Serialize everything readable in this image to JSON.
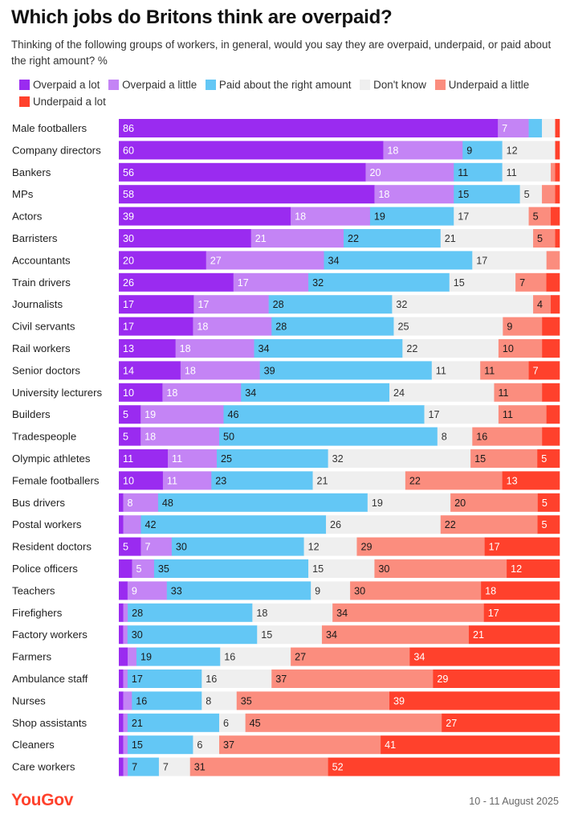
{
  "header": {
    "title": "Which jobs do Britons think are overpaid?",
    "subtitle": "Thinking of the following groups of workers, in general, would you say they are overpaid, underpaid, or paid about the right amount? %"
  },
  "footer": {
    "brand": "YouGov",
    "date": "10 - 11 August 2025"
  },
  "chart_data": {
    "type": "bar",
    "orientation": "horizontal",
    "stacked": true,
    "legend_position": "top",
    "grid": false,
    "categories": [
      "Male footballers",
      "Company directors",
      "Bankers",
      "MPs",
      "Actors",
      "Barristers",
      "Accountants",
      "Train drivers",
      "Journalists",
      "Civil servants",
      "Rail workers",
      "Senior doctors",
      "University lecturers",
      "Builders",
      "Tradespeople",
      "Olympic athletes",
      "Female footballers",
      "Bus drivers",
      "Postal workers",
      "Resident doctors",
      "Police officers",
      "Teachers",
      "Firefighers",
      "Factory workers",
      "Farmers",
      "Ambulance staff",
      "Nurses",
      "Shop assistants",
      "Cleaners",
      "Care workers"
    ],
    "series": [
      {
        "name": "Overpaid a lot",
        "color": "#9a2bf0",
        "label_color": "#ffffff",
        "values": [
          86,
          60,
          56,
          58,
          39,
          30,
          20,
          26,
          17,
          17,
          13,
          14,
          10,
          5,
          5,
          11,
          10,
          1,
          1,
          5,
          3,
          2,
          1,
          1,
          2,
          1,
          1,
          1,
          1,
          1
        ]
      },
      {
        "name": "Overpaid a little",
        "color": "#c484f5",
        "label_color": "#ffffff",
        "values": [
          7,
          18,
          20,
          18,
          18,
          21,
          27,
          17,
          17,
          18,
          18,
          18,
          18,
          19,
          18,
          11,
          11,
          8,
          4,
          7,
          5,
          9,
          1,
          1,
          2,
          1,
          2,
          1,
          1,
          1
        ]
      },
      {
        "name": "Paid about the right amount",
        "color": "#63c7f5",
        "label_color": "#1a1a1a",
        "values": [
          3,
          9,
          11,
          15,
          19,
          22,
          34,
          32,
          28,
          28,
          34,
          39,
          34,
          46,
          50,
          25,
          23,
          48,
          42,
          30,
          35,
          33,
          28,
          30,
          19,
          17,
          16,
          21,
          15,
          7
        ]
      },
      {
        "name": "Don't know",
        "color": "#efefef",
        "label_color": "#333333",
        "values": [
          3,
          12,
          11,
          5,
          17,
          21,
          17,
          15,
          32,
          25,
          22,
          11,
          24,
          17,
          8,
          32,
          21,
          19,
          26,
          12,
          15,
          9,
          18,
          15,
          16,
          16,
          8,
          6,
          6,
          7
        ]
      },
      {
        "name": "Underpaid a little",
        "color": "#fb8d7e",
        "label_color": "#1a1a1a",
        "values": [
          0,
          0,
          1,
          3,
          5,
          5,
          3,
          7,
          4,
          9,
          10,
          11,
          11,
          11,
          16,
          15,
          22,
          20,
          22,
          29,
          30,
          30,
          34,
          34,
          27,
          37,
          35,
          45,
          37,
          31
        ]
      },
      {
        "name": "Underpaid a lot",
        "color": "#ff412c",
        "label_color": "#ffffff",
        "values": [
          1,
          1,
          1,
          1,
          2,
          1,
          0,
          3,
          2,
          4,
          4,
          7,
          4,
          3,
          4,
          5,
          13,
          5,
          5,
          17,
          12,
          18,
          17,
          21,
          34,
          29,
          39,
          27,
          41,
          52
        ]
      }
    ],
    "data_labels": [
      [
        "86",
        "7",
        "",
        "",
        "",
        ""
      ],
      [
        "60",
        "18",
        "9",
        "12",
        "",
        ""
      ],
      [
        "56",
        "20",
        "11",
        "11",
        "",
        ""
      ],
      [
        "58",
        "18",
        "15",
        "5",
        "",
        ""
      ],
      [
        "39",
        "18",
        "19",
        "17",
        "5",
        ""
      ],
      [
        "30",
        "21",
        "22",
        "21",
        "5",
        ""
      ],
      [
        "20",
        "27",
        "34",
        "17",
        "",
        ""
      ],
      [
        "26",
        "17",
        "32",
        "15",
        "7",
        ""
      ],
      [
        "17",
        "17",
        "28",
        "32",
        "4",
        ""
      ],
      [
        "17",
        "18",
        "28",
        "25",
        "9",
        ""
      ],
      [
        "13",
        "18",
        "34",
        "22",
        "10",
        ""
      ],
      [
        "14",
        "18",
        "39",
        "11",
        "11",
        "7"
      ],
      [
        "10",
        "18",
        "34",
        "24",
        "11",
        ""
      ],
      [
        "5",
        "19",
        "46",
        "17",
        "11",
        ""
      ],
      [
        "5",
        "18",
        "50",
        "8",
        "16",
        ""
      ],
      [
        "11",
        "11",
        "25",
        "32",
        "15",
        "5"
      ],
      [
        "10",
        "11",
        "23",
        "21",
        "22",
        "13"
      ],
      [
        "",
        "8",
        "48",
        "19",
        "20",
        "5"
      ],
      [
        "",
        "",
        "42",
        "26",
        "22",
        "5"
      ],
      [
        "5",
        "7",
        "30",
        "12",
        "29",
        "17"
      ],
      [
        "",
        "5",
        "35",
        "15",
        "30",
        "12"
      ],
      [
        "",
        "9",
        "33",
        "9",
        "30",
        "18"
      ],
      [
        "",
        "",
        "28",
        "18",
        "34",
        "17"
      ],
      [
        "",
        "",
        "30",
        "15",
        "34",
        "21"
      ],
      [
        "",
        "",
        "19",
        "16",
        "27",
        "34"
      ],
      [
        "",
        "",
        "17",
        "16",
        "37",
        "29"
      ],
      [
        "",
        "",
        "16",
        "8",
        "35",
        "39"
      ],
      [
        "",
        "",
        "21",
        "6",
        "45",
        "27"
      ],
      [
        "",
        "",
        "15",
        "6",
        "37",
        "41"
      ],
      [
        "",
        "",
        "7",
        "7",
        "31",
        "52"
      ]
    ]
  }
}
